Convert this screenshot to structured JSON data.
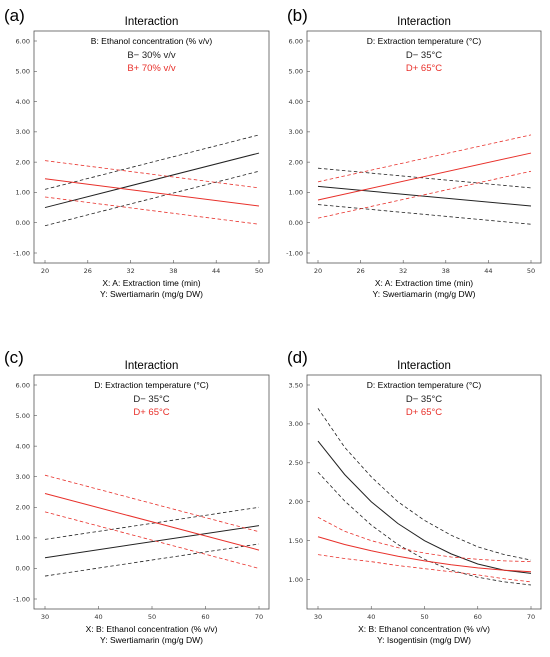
{
  "colors": {
    "low": "#222222",
    "high": "#e8302a",
    "frame": "#555555"
  },
  "chart_data": [
    {
      "type": "line",
      "panel": "(a)",
      "title": "Interaction",
      "xlabel": "X: A: Extraction time (min)",
      "ylabel_line": "Y: Swertiamarin (mg/g DW)",
      "xlim": [
        20,
        50
      ],
      "ylim": [
        -1.0,
        6.0
      ],
      "xticks": [
        "20",
        "26",
        "32",
        "38",
        "44",
        "50"
      ],
      "yticks": [
        "-1.00",
        "0.00",
        "1.00",
        "2.00",
        "3.00",
        "4.00",
        "5.00",
        "6.00"
      ],
      "legend_title": "B: Ethanol concentration (% v/v)",
      "series": [
        {
          "name": "B− 30% v/v",
          "color": "#222222",
          "x": [
            20,
            50
          ],
          "y": [
            0.5,
            2.3
          ],
          "ci_low": [
            20,
            50,
            -0.1,
            1.7
          ],
          "ci_high": [
            20,
            50,
            1.1,
            2.9
          ]
        },
        {
          "name": "B+ 70% v/v",
          "color": "#e8302a",
          "x": [
            20,
            50
          ],
          "y": [
            1.45,
            0.55
          ],
          "ci_low": [
            20,
            50,
            0.85,
            -0.05
          ],
          "ci_high": [
            20,
            50,
            2.05,
            1.15
          ]
        }
      ]
    },
    {
      "type": "line",
      "panel": "(b)",
      "title": "Interaction",
      "xlabel": "X: A: Extraction time (min)",
      "ylabel_line": "Y: Swertiamarin (mg/g DW)",
      "xlim": [
        20,
        50
      ],
      "ylim": [
        -1.0,
        6.0
      ],
      "xticks": [
        "20",
        "26",
        "32",
        "38",
        "44",
        "50"
      ],
      "yticks": [
        "-1.00",
        "0.00",
        "1.00",
        "2.00",
        "3.00",
        "4.00",
        "5.00",
        "6.00"
      ],
      "legend_title": "D: Extraction temperature  (°C)",
      "series": [
        {
          "name": "D− 35°C",
          "color": "#222222",
          "x": [
            20,
            50
          ],
          "y": [
            1.2,
            0.55
          ],
          "ci_low": [
            20,
            50,
            0.6,
            -0.05
          ],
          "ci_high": [
            20,
            50,
            1.8,
            1.15
          ]
        },
        {
          "name": "D+ 65°C",
          "color": "#e8302a",
          "x": [
            20,
            50
          ],
          "y": [
            0.75,
            2.3
          ],
          "ci_low": [
            20,
            50,
            0.15,
            1.7
          ],
          "ci_high": [
            20,
            50,
            1.35,
            2.9
          ]
        }
      ]
    },
    {
      "type": "line",
      "panel": "(c)",
      "title": "Interaction",
      "xlabel": "X: B: Ethanol concentration (% v/v)",
      "ylabel_line": "Y: Swertiamarin (mg/g DW)",
      "xlim": [
        30,
        70
      ],
      "ylim": [
        -1.0,
        6.0
      ],
      "xticks": [
        "30",
        "40",
        "50",
        "60",
        "70"
      ],
      "yticks": [
        "-1.00",
        "0.00",
        "1.00",
        "2.00",
        "3.00",
        "4.00",
        "5.00",
        "6.00"
      ],
      "legend_title": "D: Extraction temperature  (°C)",
      "series": [
        {
          "name": "D− 35°C",
          "color": "#222222",
          "x": [
            30,
            70
          ],
          "y": [
            0.35,
            1.4
          ],
          "ci_low": [
            30,
            70,
            -0.25,
            0.8
          ],
          "ci_high": [
            30,
            70,
            0.95,
            2.0
          ]
        },
        {
          "name": "D+ 65°C",
          "color": "#e8302a",
          "x": [
            30,
            70
          ],
          "y": [
            2.45,
            0.6
          ],
          "ci_low": [
            30,
            70,
            1.85,
            0.0
          ],
          "ci_high": [
            30,
            70,
            3.05,
            1.2
          ]
        }
      ]
    },
    {
      "type": "line",
      "panel": "(d)",
      "title": "Interaction",
      "xlabel": "X: B: Ethanol concentration (% v/v)",
      "ylabel_line": "Y: Isogentisin  (mg/g DW)",
      "xlim": [
        30,
        70
      ],
      "ylim": [
        0.75,
        3.5
      ],
      "xticks": [
        "30",
        "40",
        "50",
        "60",
        "70"
      ],
      "yticks": [
        "1.00",
        "1.50",
        "2.00",
        "2.50",
        "3.00",
        "3.50"
      ],
      "legend_title": "D: Extraction temperature  (°C)",
      "series": [
        {
          "name": "D− 35°C",
          "color": "#222222",
          "x": [
            30,
            35,
            40,
            45,
            50,
            55,
            60,
            65,
            70
          ],
          "y": [
            2.78,
            2.35,
            2.0,
            1.72,
            1.5,
            1.33,
            1.2,
            1.12,
            1.08
          ],
          "upper": [
            3.2,
            2.7,
            2.32,
            2.0,
            1.76,
            1.57,
            1.42,
            1.32,
            1.25
          ],
          "lower": [
            2.38,
            2.01,
            1.7,
            1.45,
            1.26,
            1.12,
            1.03,
            0.97,
            0.93
          ]
        },
        {
          "name": "D+ 65°C",
          "color": "#e8302a",
          "x": [
            30,
            35,
            40,
            45,
            50,
            55,
            60,
            65,
            70
          ],
          "y": [
            1.55,
            1.45,
            1.37,
            1.3,
            1.24,
            1.19,
            1.15,
            1.12,
            1.1
          ],
          "upper": [
            1.8,
            1.62,
            1.5,
            1.41,
            1.34,
            1.29,
            1.26,
            1.24,
            1.23
          ],
          "lower": [
            1.32,
            1.27,
            1.23,
            1.18,
            1.14,
            1.1,
            1.06,
            1.01,
            0.97
          ]
        }
      ]
    }
  ]
}
